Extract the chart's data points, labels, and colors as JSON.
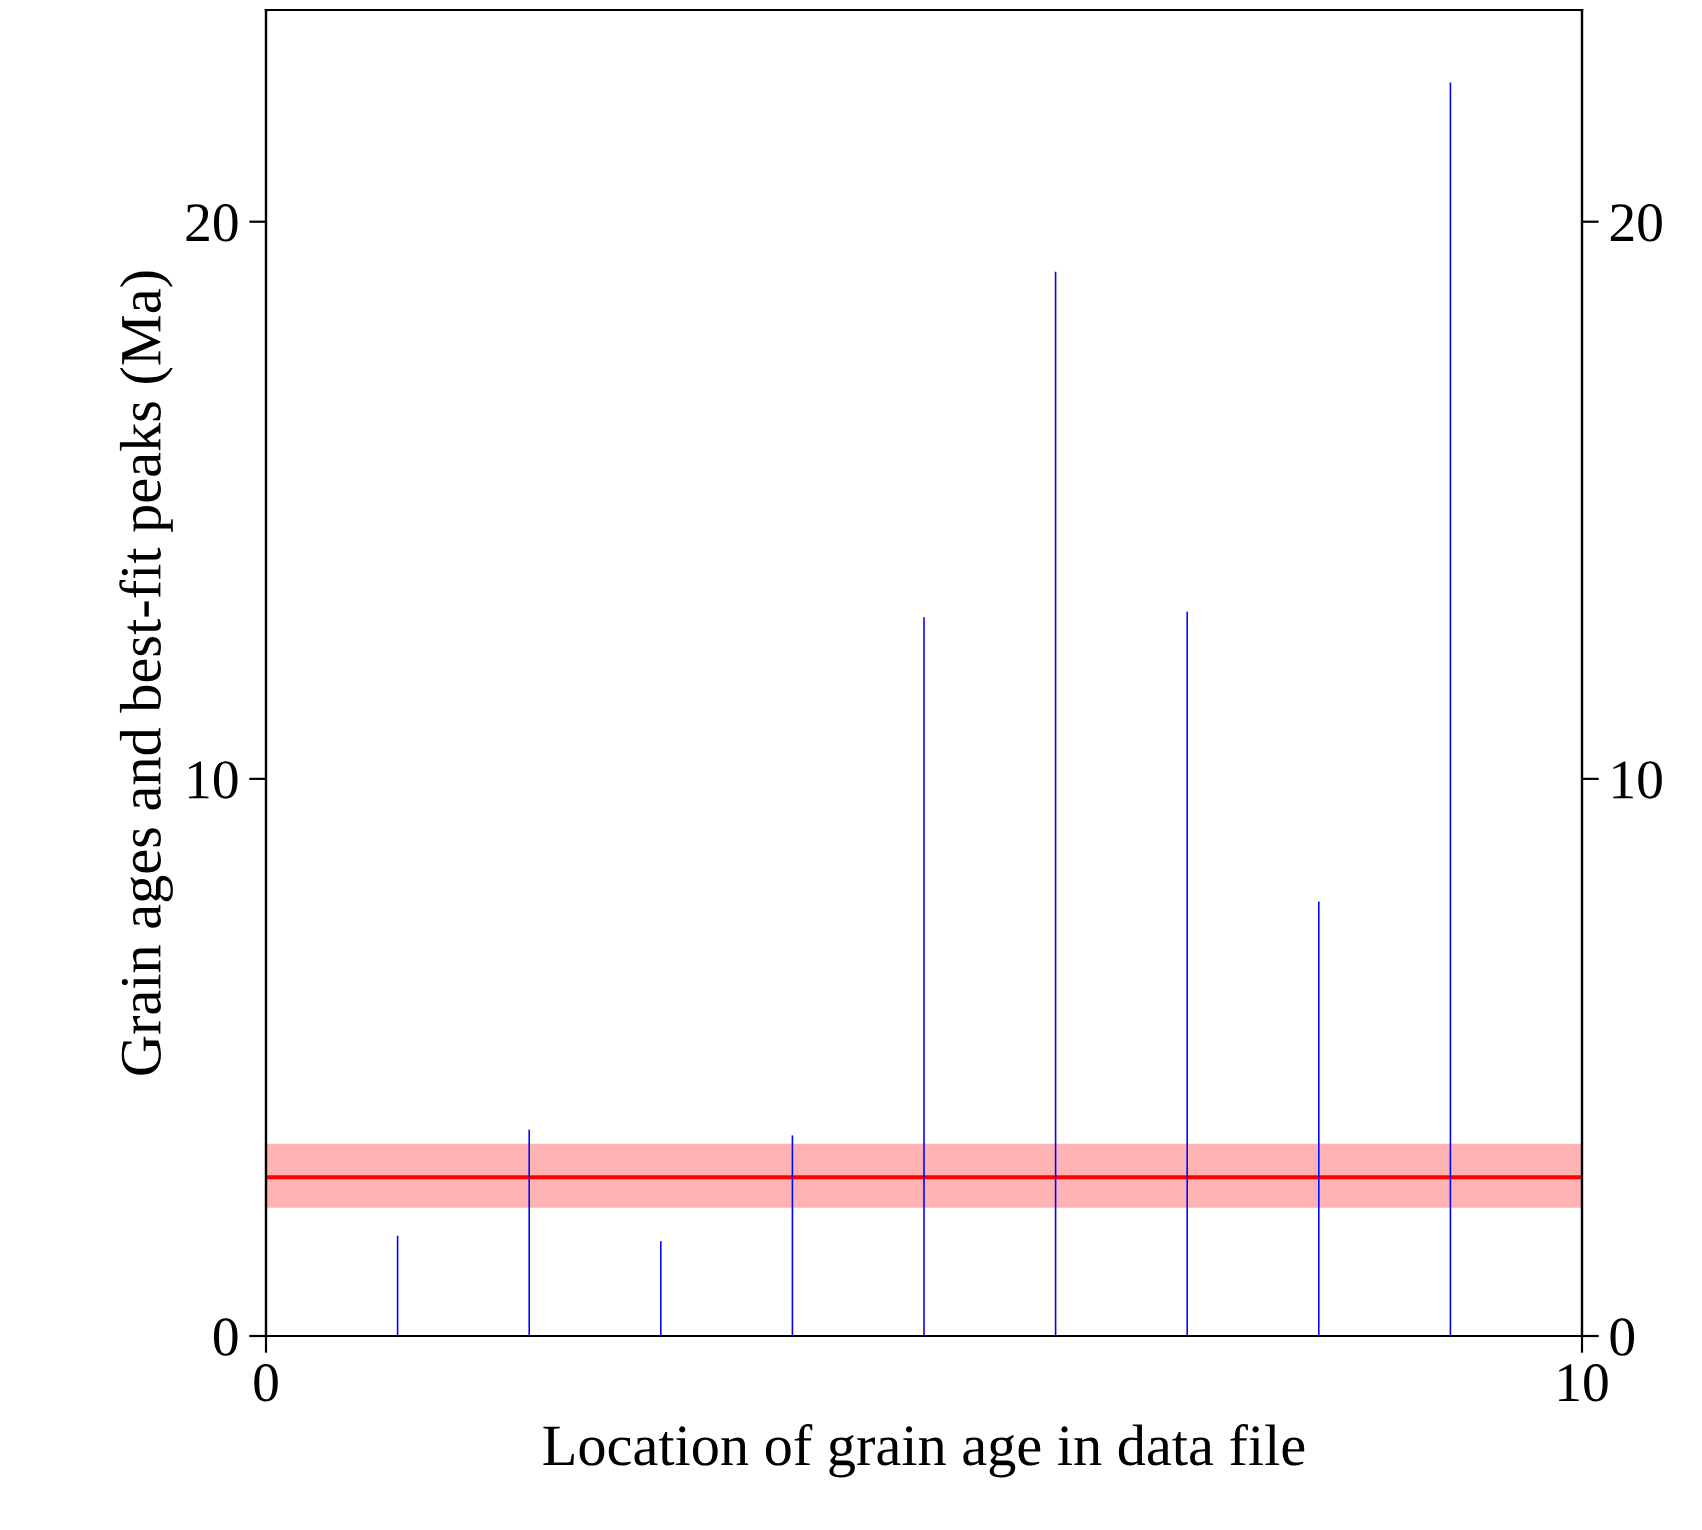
{
  "chart_data": {
    "type": "bar",
    "xlabel": "Location of grain age in data file",
    "ylabel": "Grain ages and best-fit peaks (Ma)",
    "x": [
      1,
      2,
      3,
      4,
      5,
      6,
      7,
      8,
      9
    ],
    "values": [
      1.8,
      3.7,
      1.7,
      3.6,
      12.9,
      19.1,
      13.0,
      7.8,
      22.5
    ],
    "color": "#0000ff",
    "xlim": [
      0,
      10
    ],
    "xticks": [
      0,
      10
    ],
    "ylim": [
      0,
      23.8
    ],
    "yticks": [
      0,
      10,
      20
    ],
    "y2lim": [
      0,
      23.8
    ],
    "y2ticks": [
      0,
      10,
      20
    ],
    "ref_lines": [
      {
        "axis": "y",
        "value": 2.85,
        "color": "#ff0000"
      }
    ],
    "bands": [
      {
        "axis": "y",
        "from": 2.3,
        "to": 3.45,
        "color": "#ffb3b3"
      }
    ],
    "grid": false,
    "legend": false
  }
}
